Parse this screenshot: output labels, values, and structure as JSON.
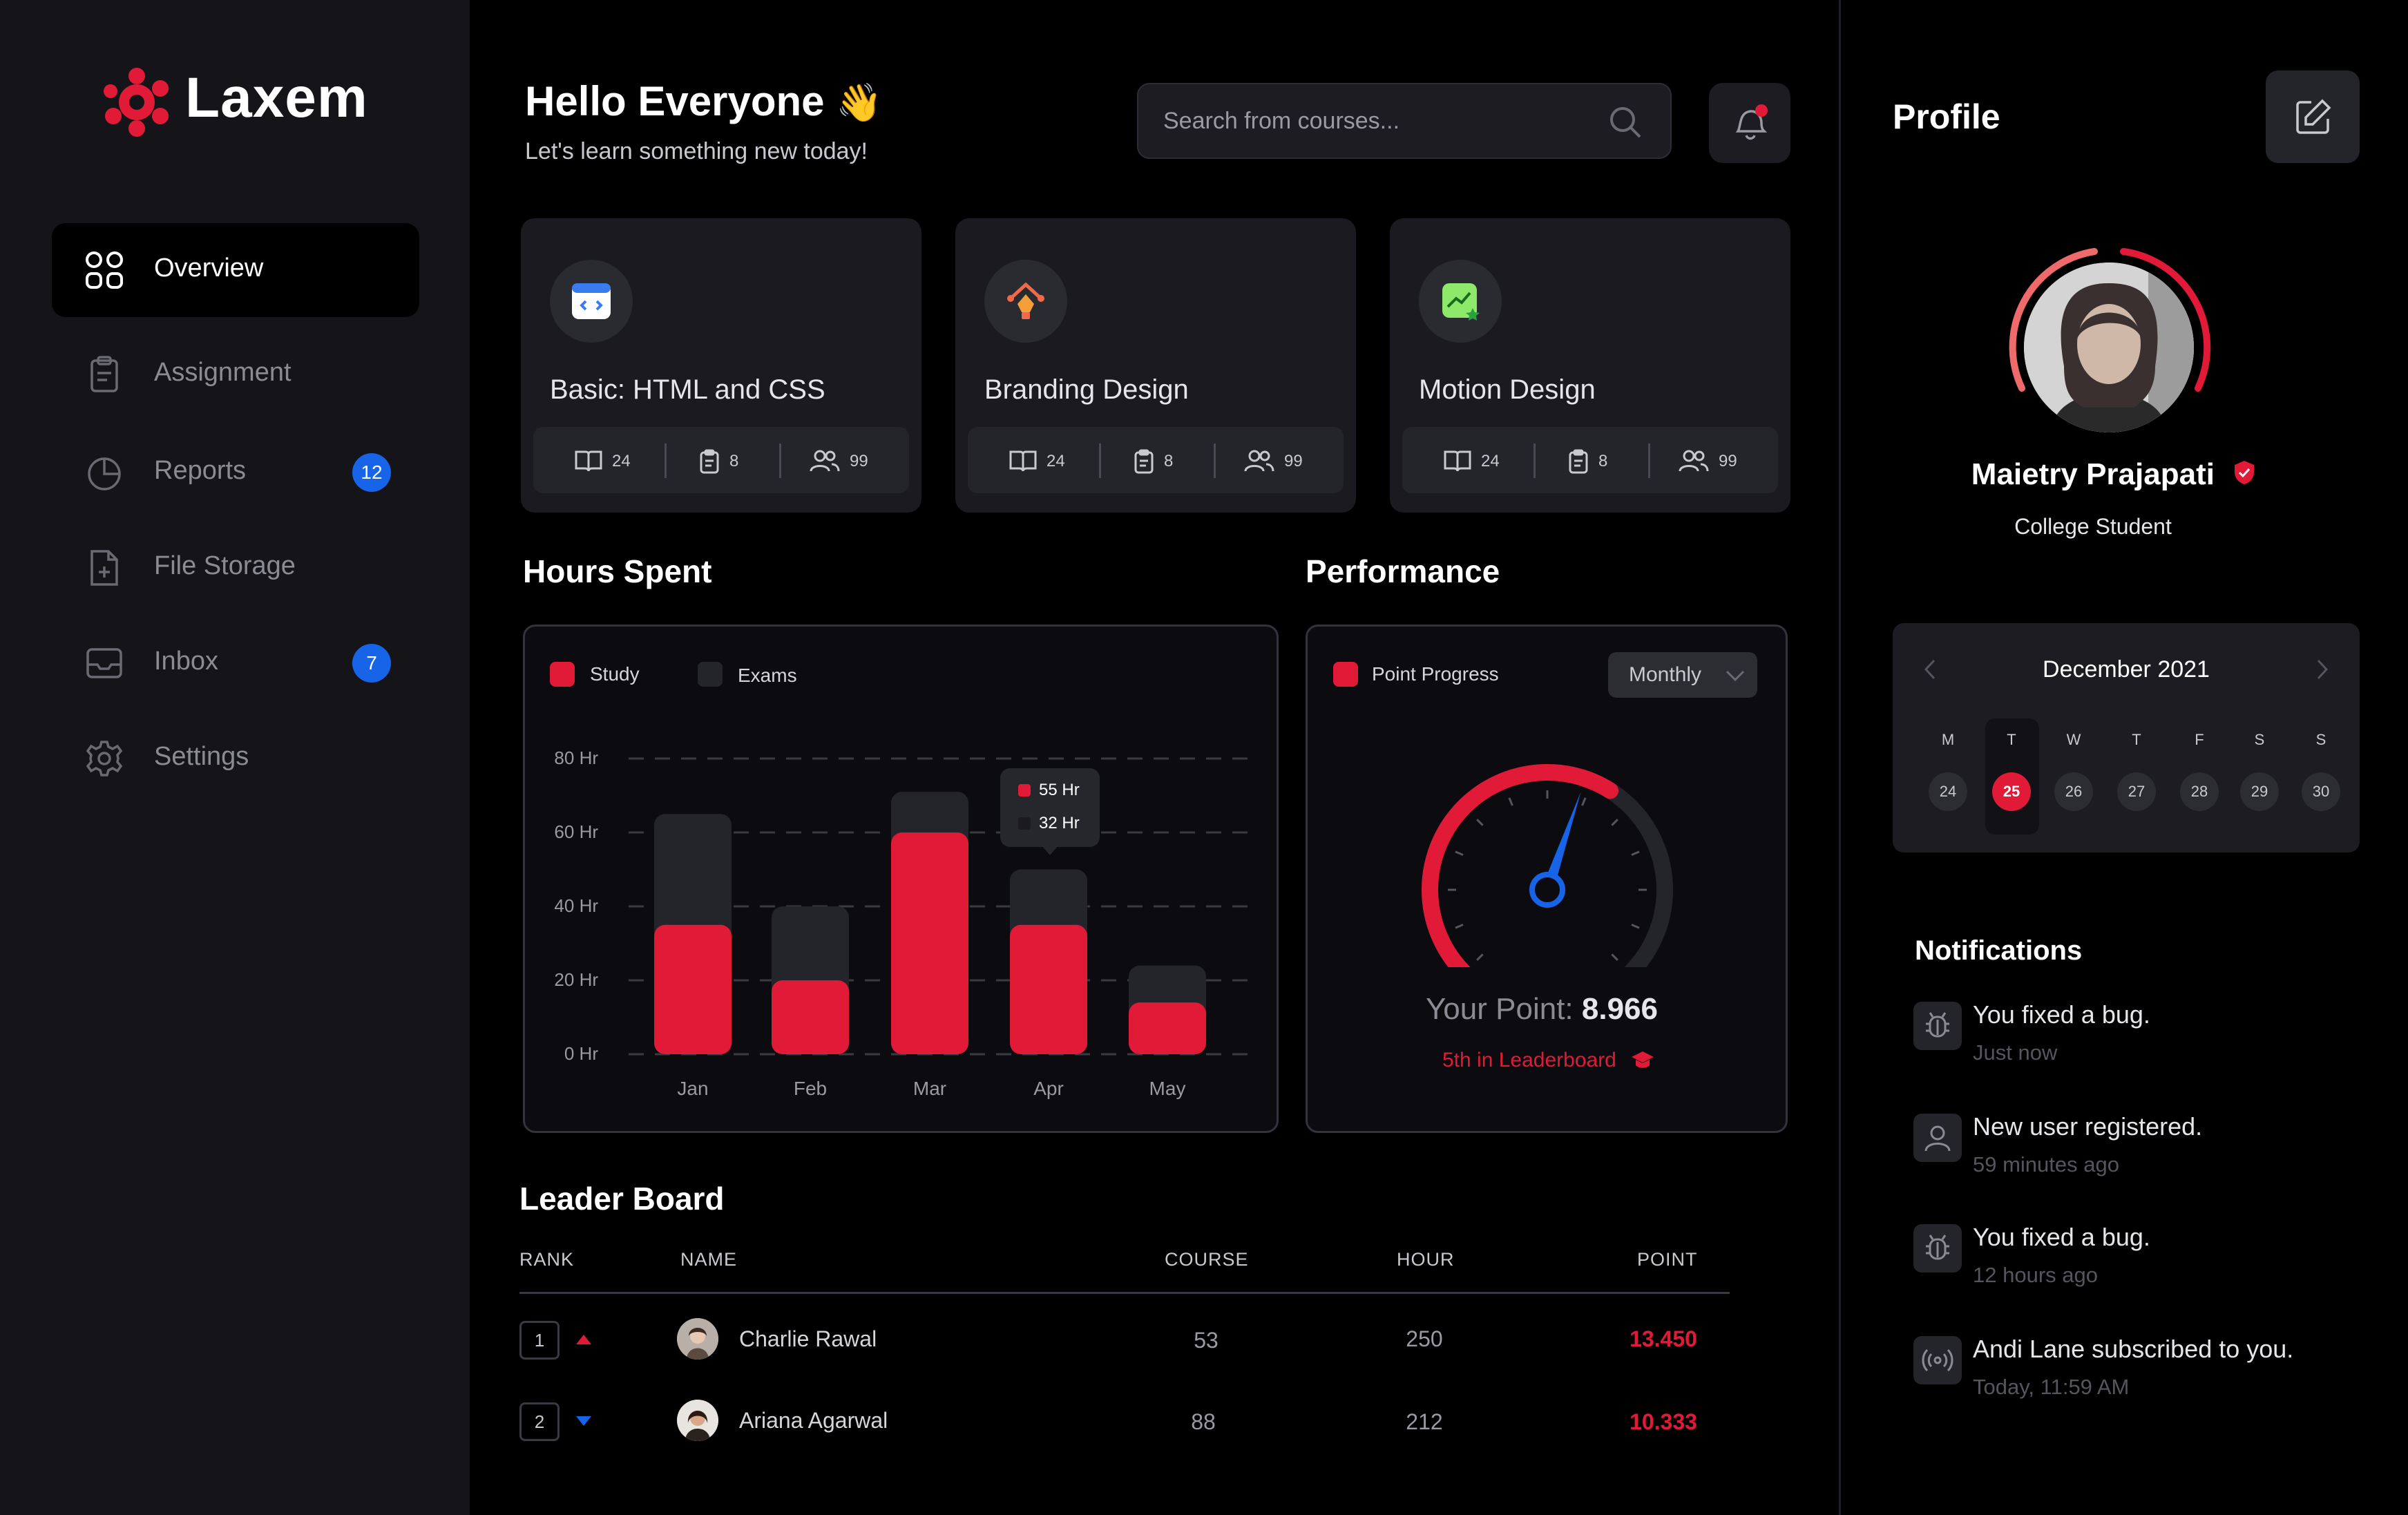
{
  "brand": {
    "name": "Laxem"
  },
  "sidebar": {
    "items": [
      {
        "label": "Overview",
        "icon": "grid-icon",
        "badge": ""
      },
      {
        "label": "Assignment",
        "icon": "clipboard-icon",
        "badge": ""
      },
      {
        "label": "Reports",
        "icon": "pie-chart-icon",
        "badge": "12"
      },
      {
        "label": "File Storage",
        "icon": "file-add-icon",
        "badge": ""
      },
      {
        "label": "Inbox",
        "icon": "inbox-icon",
        "badge": "7"
      },
      {
        "label": "Settings",
        "icon": "gear-icon",
        "badge": ""
      }
    ]
  },
  "header": {
    "greeting": "Hello Everyone",
    "greeting_emoji": "👋",
    "subtitle": "Let's learn something new today!",
    "search_placeholder": "Search from courses..."
  },
  "courses": [
    {
      "title": "Basic: HTML and CSS",
      "lessons": "24",
      "assignments": "8",
      "students": "99"
    },
    {
      "title": "Branding Design",
      "lessons": "24",
      "assignments": "8",
      "students": "99"
    },
    {
      "title": "Motion Design",
      "lessons": "24",
      "assignments": "8",
      "students": "99"
    }
  ],
  "hours": {
    "title": "Hours Spent",
    "chart_data": {
      "type": "bar",
      "categories": [
        "Jan",
        "Feb",
        "Mar",
        "Apr",
        "May"
      ],
      "series": [
        {
          "name": "Study",
          "values": [
            35,
            20,
            60,
            35,
            14
          ]
        },
        {
          "name": "Exams",
          "values": [
            65,
            40,
            71,
            50,
            24
          ]
        }
      ],
      "yticks": [
        "80 Hr",
        "60 Hr",
        "40 Hr",
        "20 Hr",
        "0 Hr"
      ],
      "ylim": [
        0,
        80
      ],
      "tooltip": {
        "study": "55 Hr",
        "exams": "32 Hr"
      },
      "colors": {
        "study": "#e01a37",
        "exams": "#24242b"
      }
    }
  },
  "performance": {
    "title": "Performance",
    "legend": "Point Progress",
    "period": "Monthly",
    "point_label": "Your Point:",
    "point_value": "8.966",
    "rank_text": "5th in Leaderboard",
    "gauge_fraction": 0.62
  },
  "leaderboard": {
    "title": "Leader Board",
    "columns": [
      "RANK",
      "NAME",
      "COURSE",
      "HOUR",
      "POINT"
    ],
    "rows": [
      {
        "rank": "1",
        "trend": "up",
        "name": "Charlie Rawal",
        "course": "53",
        "hour": "250",
        "point": "13.450"
      },
      {
        "rank": "2",
        "trend": "down",
        "name": "Ariana Agarwal",
        "course": "88",
        "hour": "212",
        "point": "10.333"
      }
    ]
  },
  "profile": {
    "title": "Profile",
    "name": "Maietry Prajapati",
    "role": "College Student"
  },
  "calendar": {
    "month": "December 2021",
    "days": [
      "M",
      "T",
      "W",
      "T",
      "F",
      "S",
      "S"
    ],
    "dates": [
      "24",
      "25",
      "26",
      "27",
      "28",
      "29",
      "30"
    ],
    "selected": "25"
  },
  "notifications": {
    "title": "Notifications",
    "items": [
      {
        "text": "You fixed a bug.",
        "time": "Just now",
        "icon": "bug-icon"
      },
      {
        "text": "New user registered.",
        "time": "59 minutes ago",
        "icon": "user-icon"
      },
      {
        "text": "You fixed a bug.",
        "time": "12 hours ago",
        "icon": "bug-icon"
      },
      {
        "text": "Andi Lane subscribed to you.",
        "time": "Today, 11:59 AM",
        "icon": "broadcast-icon"
      }
    ]
  }
}
